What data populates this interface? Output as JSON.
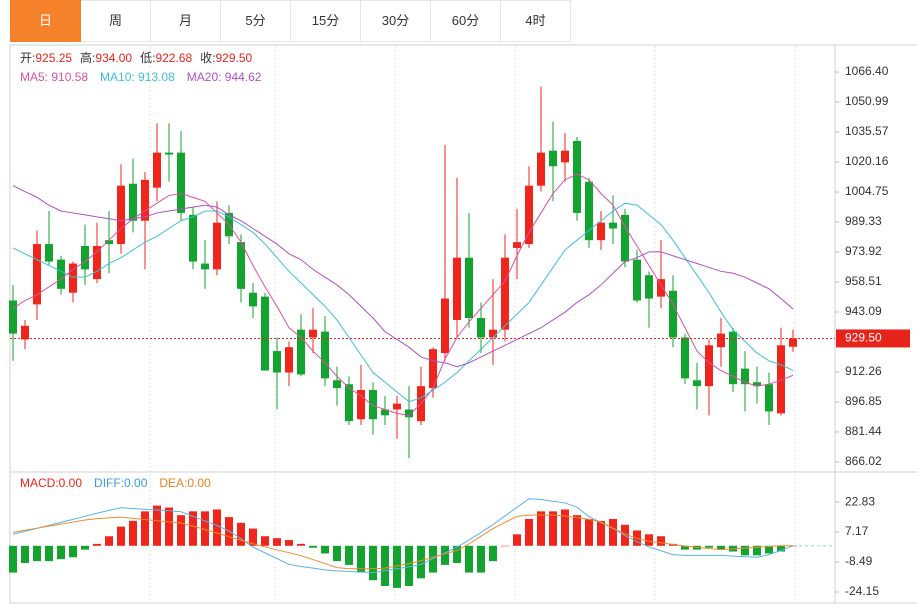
{
  "tabs": [
    "日",
    "周",
    "月",
    "5分",
    "15分",
    "30分",
    "60分",
    "4时"
  ],
  "active_tab": 0,
  "chart_data": [
    {
      "type": "candlestick",
      "ohlc_info": [
        {
          "label": "开:",
          "value": "925.25"
        },
        {
          "label": "高:",
          "value": "934.00"
        },
        {
          "label": "低:",
          "value": "922.68"
        },
        {
          "label": "收:",
          "value": "929.50"
        }
      ],
      "info_label_color": "#333333",
      "info_value_color": "#e8231b",
      "up_color": "#f0261c",
      "down_color": "#13a32f",
      "ylim": [
        861.9,
        1080.3
      ],
      "yticks": [
        {
          "value": 1066.4,
          "label": "1066.40"
        },
        1050.99,
        1035.57,
        1020.16,
        1004.75,
        989.33,
        973.92,
        958.51,
        943.09,
        912.26,
        896.85,
        881.44,
        866.02
      ],
      "last_price": {
        "value": 929.5,
        "label": "929.50",
        "color": "#e8231b"
      },
      "open": [
        949,
        929,
        947,
        978,
        970,
        953,
        977,
        960,
        980,
        978,
        1009,
        990,
        1007,
        1025,
        1025,
        993,
        968,
        965,
        994,
        979,
        953,
        951,
        923,
        912,
        934,
        930,
        933,
        908,
        906,
        888,
        903,
        893,
        893,
        893,
        887,
        904,
        922,
        939,
        971,
        940,
        930,
        934,
        976,
        978,
        1008,
        1026,
        1020,
        1031,
        1010,
        980,
        989,
        993,
        970,
        962,
        951,
        954,
        930,
        908,
        905,
        925,
        933,
        914,
        907,
        906,
        891,
        925.25
      ],
      "high": [
        957,
        939,
        985,
        995,
        972,
        969,
        988,
        989,
        995,
        1019,
        1022,
        1015,
        1040,
        1040,
        1036,
        997,
        980,
        1000,
        998,
        983,
        958,
        953,
        930,
        928,
        942,
        945,
        941,
        915,
        910,
        916,
        907,
        900,
        900,
        905,
        915,
        925,
        1029,
        1012,
        994,
        948,
        960,
        983,
        996,
        1018,
        1059,
        1041,
        1035,
        1033,
        1012,
        995,
        1003,
        996,
        975,
        964,
        980,
        962,
        932,
        917,
        929,
        940,
        935,
        923,
        915,
        912,
        935,
        934
      ],
      "low": [
        918,
        924,
        939,
        967,
        952,
        948,
        957,
        958,
        963,
        973,
        984,
        965,
        1000,
        1010,
        990,
        965,
        955,
        962,
        978,
        948,
        940,
        913,
        893,
        905,
        910,
        922,
        905,
        895,
        885,
        885,
        880,
        885,
        878,
        868,
        885,
        899,
        918,
        930,
        935,
        922,
        916,
        928,
        960,
        976,
        1005,
        1000,
        1010,
        990,
        976,
        975,
        978,
        966,
        948,
        935,
        945,
        925,
        906,
        893,
        890,
        915,
        902,
        892,
        896,
        885,
        890,
        922.68
      ],
      "close": [
        932,
        936,
        978,
        969,
        955,
        968,
        965,
        977,
        978,
        1008,
        990,
        1011,
        1025,
        1024,
        994,
        969,
        965,
        989,
        982,
        955,
        946,
        913,
        912,
        925,
        911,
        934,
        909,
        904,
        887,
        903,
        888,
        890,
        896,
        889,
        905,
        924,
        950,
        971,
        940,
        930,
        934,
        971,
        979,
        1008,
        1025,
        1018,
        1026,
        994,
        980,
        989,
        986,
        969,
        949,
        950,
        960,
        930,
        909,
        905,
        926,
        932,
        906,
        906,
        905,
        892,
        926,
        929.5
      ],
      "series": [
        {
          "name": "MA5: 910.58",
          "color": "#de4fa0",
          "values": [
            945,
            949,
            952,
            956,
            960,
            965,
            969,
            974,
            980,
            986,
            991,
            995,
            999,
            1003,
            1004,
            1002,
            1000,
            994,
            988,
            979,
            967,
            956,
            946,
            935,
            930,
            923,
            917,
            910,
            904,
            900,
            895,
            893,
            891,
            890,
            896,
            904,
            919,
            930,
            938,
            945,
            952,
            959,
            972,
            984,
            994,
            1004,
            1011,
            1014,
            1011,
            1004,
            998,
            987,
            977,
            967,
            957,
            947,
            935,
            923,
            917,
            913,
            910,
            907,
            905,
            906,
            908,
            910.58
          ]
        },
        {
          "name": "MA10: 913.08",
          "color": "#3dbfd6",
          "values": [
            976,
            973,
            970,
            967,
            964,
            961,
            961,
            964,
            968,
            971,
            975,
            979,
            982,
            986,
            990,
            992,
            995,
            995,
            992,
            988,
            984,
            978,
            971,
            964,
            958,
            952,
            946,
            939,
            930,
            921,
            912,
            907,
            902,
            897,
            899,
            903,
            907,
            912,
            918,
            924,
            930,
            936,
            942,
            948,
            957,
            966,
            975,
            980,
            985,
            990,
            995,
            999,
            998,
            993,
            988,
            980,
            971,
            962,
            953,
            943,
            934,
            928,
            922,
            918,
            916,
            913.08
          ]
        },
        {
          "name": "MA20: 944.62",
          "color": "#b04fc6",
          "values": [
            1008,
            1005,
            1002,
            998,
            995,
            994,
            993,
            992,
            991,
            990,
            991,
            992,
            994,
            995,
            996,
            997,
            998,
            997,
            993,
            990,
            986,
            982,
            978,
            973,
            970,
            965,
            961,
            957,
            952,
            946,
            940,
            933,
            929,
            925,
            920,
            918,
            917,
            915,
            917,
            920,
            923,
            926,
            929,
            932,
            935,
            939,
            943,
            948,
            952,
            957,
            963,
            969,
            971,
            974,
            974,
            972,
            970,
            968,
            966,
            964,
            963,
            961,
            958,
            955,
            950,
            944.62
          ]
        }
      ]
    },
    {
      "type": "macd",
      "macd_info": [
        {
          "label": "MACD:",
          "value": "0.00",
          "color": "#e8231b"
        },
        {
          "label": "DIFF:",
          "value": "0.00",
          "color": "#3a9de0"
        },
        {
          "label": "DEA:",
          "value": "0.00",
          "color": "#f0801f"
        }
      ],
      "ylim": [
        -29.9,
        37.0
      ],
      "yticks": [
        22.83,
        7.17,
        -8.49,
        -24.15
      ],
      "up_color": "#f0261c",
      "down_color": "#13a32f",
      "values": [
        -14,
        -9,
        -8,
        -8,
        -7,
        -6,
        -2,
        1,
        5,
        10,
        13,
        18,
        21,
        20,
        16,
        18,
        18,
        19,
        15,
        12,
        9,
        5,
        4,
        3,
        1,
        -1,
        -4,
        -8,
        -10,
        -14,
        -18,
        -21,
        -22,
        -21,
        -17,
        -14,
        -10,
        -9,
        -14,
        -14,
        -8,
        0,
        6,
        14,
        18,
        18,
        19,
        16,
        14,
        13,
        14,
        11,
        8,
        6,
        5,
        1,
        -2,
        -2,
        -1,
        -2,
        -3,
        -5,
        -5,
        -4,
        -3,
        0
      ],
      "series": [
        {
          "name": "DIFF",
          "color": "#5ab4e6",
          "values": [
            6,
            7.6,
            9.1,
            10.7,
            12.3,
            13.8,
            15.4,
            17,
            18.5,
            19.9,
            19.5,
            19.1,
            18.7,
            18.3,
            17.8,
            15.4,
            13,
            10.6,
            7.7,
            3.7,
            -0.7,
            -3.7,
            -6.7,
            -9.7,
            -10.8,
            -11.7,
            -12.6,
            -13.1,
            -13.4,
            -13.7,
            -14,
            -13,
            -12,
            -11,
            -9.7,
            -6.7,
            -3.7,
            -0.7,
            3,
            7,
            11.1,
            15.6,
            20.1,
            24.6,
            24.2,
            23.3,
            22.4,
            20.1,
            15.3,
            12.1,
            9.1,
            5.3,
            2.1,
            -0.6,
            -2.6,
            -4.6,
            -5,
            -5,
            -5,
            -5,
            -5.4,
            -5.7,
            -6,
            -4.6,
            -2.4,
            0
          ]
        },
        {
          "name": "DEA",
          "color": "#f08a2a",
          "values": [
            7,
            8.1,
            9.2,
            10.3,
            11.3,
            12.4,
            13.5,
            14.2,
            14.6,
            15,
            14.3,
            13.7,
            13.1,
            12.5,
            11.9,
            10.3,
            8.5,
            6.7,
            4.7,
            2.9,
            1.1,
            -0.6,
            -2.1,
            -3.6,
            -5.1,
            -7.2,
            -9.3,
            -11.4,
            -12,
            -12,
            -12,
            -11.7,
            -10.5,
            -9.3,
            -7.8,
            -6,
            -4.2,
            -2.4,
            1,
            5,
            9,
            12.2,
            15.4,
            16,
            16,
            16,
            15.6,
            14.7,
            13.8,
            12.5,
            9.2,
            6.2,
            3.8,
            2.4,
            1.6,
            0.7,
            -0.2,
            -0.8,
            -1.4,
            -2,
            -1.6,
            -1.2,
            -0.8,
            -0.4,
            0,
            0
          ]
        }
      ]
    }
  ]
}
